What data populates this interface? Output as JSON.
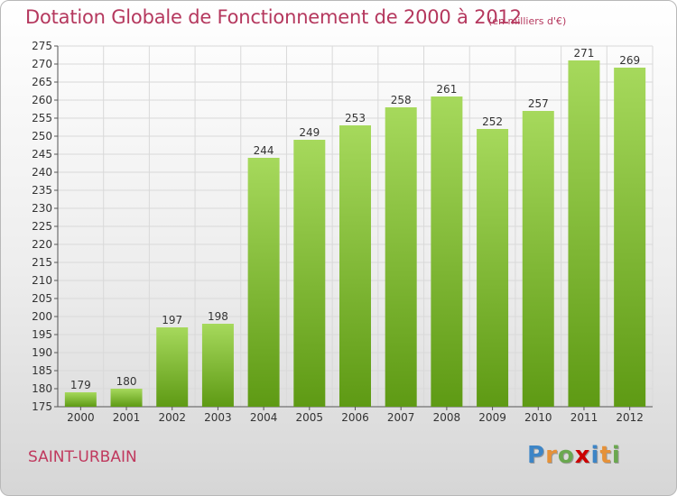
{
  "title": "Dotation Globale de Fonctionnement de 2000 à 2012",
  "unit_note": "(en milliers d'€)",
  "city": "SAINT-URBAIN",
  "brand": {
    "letters": [
      "P",
      "r",
      "o",
      "x",
      "i",
      "t",
      "i"
    ],
    "colors": [
      "#3d85c6",
      "#e69138",
      "#6aa84f",
      "#cc0000",
      "#3d85c6",
      "#e69138",
      "#6aa84f"
    ]
  },
  "colors": {
    "bar_light": "#a6d95c",
    "bar_dark": "#5e9a14",
    "grid": "#d9d9d9",
    "text": "#333333"
  },
  "chart_data": {
    "type": "bar",
    "categories": [
      "2000",
      "2001",
      "2002",
      "2003",
      "2004",
      "2005",
      "2006",
      "2007",
      "2008",
      "2009",
      "2010",
      "2011",
      "2012"
    ],
    "values": [
      179,
      180,
      197,
      198,
      244,
      249,
      253,
      258,
      261,
      252,
      257,
      271,
      269
    ],
    "ylim": [
      175,
      275
    ],
    "yticks": [
      175,
      180,
      185,
      190,
      195,
      200,
      205,
      210,
      215,
      220,
      225,
      230,
      235,
      240,
      245,
      250,
      255,
      260,
      265,
      270,
      275
    ],
    "grid": true,
    "xlabel": "",
    "ylabel": ""
  }
}
